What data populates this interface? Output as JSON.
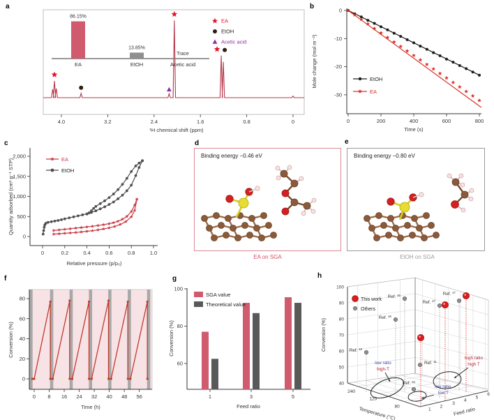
{
  "colors": {
    "crimson_bar": "#d05a6e",
    "nmr_line": "#b5374a",
    "bright_red": "#e8122a",
    "series_red": "#d93025",
    "black": "#1c1c1c",
    "dark_gray": "#4f4f4f",
    "purple": "#8f2f9e",
    "bar_gray": "#8f8f8f",
    "theo_gray": "#595959",
    "cycle_red": "#c0392b",
    "cycle_bg": "#f7e3e6",
    "band_gray": "#a8a8a8",
    "h_red": "#e11b1b",
    "h_gray": "#909090",
    "blue_text": "#3b4ba8",
    "darkred_text": "#b22030",
    "atom_brown": "#8a5a3b",
    "atom_red": "#d42020",
    "atom_yellow": "#e8dc30",
    "atom_white": "#f5e3e3"
  },
  "panels": {
    "a": {
      "label": "a"
    },
    "b": {
      "label": "b"
    },
    "c": {
      "label": "c"
    },
    "d": {
      "label": "d",
      "binding_energy": "Binding energy −0.46 eV",
      "caption": "EA on SGA"
    },
    "e": {
      "label": "e",
      "binding_energy": "Binding energy −0.80 eV",
      "caption": "EtOH on SGA"
    },
    "f": {
      "label": "f"
    },
    "g": {
      "label": "g"
    },
    "h": {
      "label": "h"
    }
  },
  "chart_data": [
    {
      "panel": "a",
      "type": "line",
      "xlabel": "¹H chemical shift (ppm)",
      "xticks": [
        "4.0",
        "3.2",
        "2.4",
        "1.6",
        "0.8",
        "0"
      ],
      "xtick_values": [
        4.0,
        3.2,
        2.4,
        1.6,
        0.8,
        0
      ],
      "x_reversed": true,
      "legend": [
        {
          "label": "EA",
          "marker": "star"
        },
        {
          "label": "EtOH",
          "marker": "circle"
        },
        {
          "label": "Acetic acid",
          "marker": "triangle"
        }
      ],
      "peaks": [
        {
          "ppm": 4.12,
          "rel_height": 0.21,
          "markers": [
            "star"
          ],
          "assign": "EA"
        },
        {
          "ppm": 3.66,
          "rel_height": 0.055,
          "markers": [
            "circle"
          ],
          "assign": "EtOH"
        },
        {
          "ppm": 2.14,
          "rel_height": 0.05,
          "markers": [
            "triangle"
          ],
          "assign": "Acetic acid"
        },
        {
          "ppm": 2.05,
          "rel_height": 0.97,
          "markers": [
            "star"
          ],
          "assign": "EA"
        },
        {
          "ppm": 1.24,
          "rel_height": 0.53,
          "markers": [
            "star",
            "circle"
          ],
          "assign": "EA+EtOH"
        },
        {
          "ppm": 0.0,
          "rel_height": 0.02,
          "markers": [],
          "assign": ""
        }
      ],
      "inset": {
        "type": "bar",
        "categories": [
          "EA",
          "EtOH",
          "Acetic acid"
        ],
        "values": [
          86.15,
          13.85,
          0
        ],
        "value_labels": [
          "86.15%",
          "13.85%",
          "Trace"
        ]
      }
    },
    {
      "panel": "b",
      "type": "scatter",
      "xlabel": "Time (s)",
      "ylabel": "Mole change (mol m⁻²)",
      "xticks": [
        0,
        200,
        400,
        600,
        800
      ],
      "yticks": [
        0,
        -10,
        -20,
        -30
      ],
      "xlim": [
        0,
        820
      ],
      "ylim": [
        -37,
        1
      ],
      "series": [
        {
          "name": "EtOH",
          "marker": "circle",
          "points": [
            [
              0,
              0
            ],
            [
              40,
              -1.2
            ],
            [
              80,
              -2.3
            ],
            [
              120,
              -3.5
            ],
            [
              160,
              -4.6
            ],
            [
              200,
              -5.8
            ],
            [
              240,
              -6.9
            ],
            [
              280,
              -8.1
            ],
            [
              320,
              -9.2
            ],
            [
              360,
              -10.4
            ],
            [
              400,
              -11.5
            ],
            [
              440,
              -12.7
            ],
            [
              480,
              -13.8
            ],
            [
              520,
              -15.0
            ],
            [
              560,
              -16.1
            ],
            [
              600,
              -17.3
            ],
            [
              640,
              -18.4
            ],
            [
              680,
              -19.6
            ],
            [
              720,
              -20.7
            ],
            [
              760,
              -21.9
            ],
            [
              800,
              -23.0
            ]
          ],
          "fit_line": [
            [
              0,
              0
            ],
            [
              800,
              -23
            ]
          ]
        },
        {
          "name": "EA",
          "marker": "star",
          "points": [
            [
              0,
              0
            ],
            [
              40,
              -1.6
            ],
            [
              80,
              -3.2
            ],
            [
              120,
              -4.8
            ],
            [
              160,
              -6.4
            ],
            [
              200,
              -8.0
            ],
            [
              240,
              -9.6
            ],
            [
              280,
              -11.2
            ],
            [
              320,
              -12.8
            ],
            [
              360,
              -14.4
            ],
            [
              400,
              -16.0
            ],
            [
              440,
              -17.6
            ],
            [
              480,
              -19.2
            ],
            [
              520,
              -20.8
            ],
            [
              560,
              -22.4
            ],
            [
              600,
              -24.0
            ],
            [
              640,
              -25.6
            ],
            [
              680,
              -27.2
            ],
            [
              720,
              -28.8
            ],
            [
              760,
              -30.4
            ],
            [
              800,
              -32.0
            ]
          ],
          "fit_line": [
            [
              0,
              0
            ],
            [
              812,
              -34.5
            ]
          ]
        }
      ]
    },
    {
      "panel": "c",
      "type": "line",
      "xlabel": "Relative pressure (p/p₀)",
      "ylabel": "Quantity adsorbed (cm³ g⁻¹ STP)",
      "xticks": [
        "0",
        "0.2",
        "0.4",
        "0.6",
        "0.8",
        "1.0"
      ],
      "xtick_values": [
        0,
        0.2,
        0.4,
        0.6,
        0.8,
        1.0
      ],
      "yticks": [
        "0",
        "500",
        "1,000",
        "1,500",
        "2,000"
      ],
      "ytick_values": [
        0,
        500,
        1000,
        1500,
        2000
      ],
      "series": [
        {
          "name": "EA",
          "marker": "star",
          "adsorption": [
            [
              0.1,
              60
            ],
            [
              0.15,
              70
            ],
            [
              0.2,
              80
            ],
            [
              0.25,
              90
            ],
            [
              0.3,
              100
            ],
            [
              0.35,
              115
            ],
            [
              0.4,
              130
            ],
            [
              0.45,
              145
            ],
            [
              0.5,
              165
            ],
            [
              0.55,
              190
            ],
            [
              0.6,
              215
            ],
            [
              0.65,
              250
            ],
            [
              0.7,
              300
            ],
            [
              0.75,
              370
            ],
            [
              0.8,
              490
            ],
            [
              0.83,
              650
            ],
            [
              0.85,
              930
            ]
          ],
          "desorption": [
            [
              0.85,
              930
            ],
            [
              0.83,
              780
            ],
            [
              0.8,
              620
            ],
            [
              0.76,
              500
            ],
            [
              0.72,
              430
            ],
            [
              0.68,
              380
            ],
            [
              0.64,
              345
            ],
            [
              0.6,
              320
            ],
            [
              0.55,
              295
            ],
            [
              0.5,
              275
            ],
            [
              0.45,
              255
            ],
            [
              0.4,
              240
            ],
            [
              0.35,
              225
            ],
            [
              0.3,
              210
            ],
            [
              0.25,
              195
            ],
            [
              0.2,
              180
            ],
            [
              0.15,
              165
            ],
            [
              0.1,
              150
            ]
          ]
        },
        {
          "name": "EtOH",
          "marker": "circle",
          "adsorption": [
            [
              0.005,
              60
            ],
            [
              0.01,
              150
            ],
            [
              0.015,
              230
            ],
            [
              0.02,
              290
            ],
            [
              0.03,
              330
            ],
            [
              0.05,
              355
            ],
            [
              0.08,
              370
            ],
            [
              0.11,
              385
            ],
            [
              0.14,
              400
            ],
            [
              0.17,
              420
            ],
            [
              0.2,
              440
            ],
            [
              0.24,
              465
            ],
            [
              0.28,
              490
            ],
            [
              0.32,
              515
            ],
            [
              0.36,
              540
            ],
            [
              0.4,
              565
            ],
            [
              0.44,
              600
            ],
            [
              0.48,
              640
            ],
            [
              0.52,
              690
            ],
            [
              0.56,
              740
            ],
            [
              0.6,
              800
            ],
            [
              0.64,
              860
            ],
            [
              0.68,
              940
            ],
            [
              0.72,
              1030
            ],
            [
              0.76,
              1140
            ],
            [
              0.8,
              1280
            ],
            [
              0.84,
              1520
            ],
            [
              0.87,
              1720
            ],
            [
              0.9,
              1890
            ]
          ],
          "desorption": [
            [
              0.9,
              1890
            ],
            [
              0.87,
              1830
            ],
            [
              0.84,
              1760
            ],
            [
              0.8,
              1620
            ],
            [
              0.76,
              1450
            ],
            [
              0.72,
              1300
            ],
            [
              0.68,
              1170
            ],
            [
              0.64,
              1060
            ],
            [
              0.6,
              970
            ],
            [
              0.56,
              890
            ],
            [
              0.52,
              820
            ],
            [
              0.48,
              750
            ],
            [
              0.46,
              700
            ],
            [
              0.44,
              640
            ],
            [
              0.42,
              590
            ],
            [
              0.4,
              560
            ]
          ]
        }
      ]
    },
    {
      "panel": "f",
      "type": "line",
      "xlabel": "Time (h)",
      "ylabel": "Conversion (%)",
      "xticks": [
        0,
        8,
        16,
        24,
        32,
        40,
        48,
        56
      ],
      "yticks": [
        0,
        20,
        40,
        60,
        80
      ],
      "points": [
        [
          -1.0,
          0
        ],
        [
          0,
          0
        ],
        [
          8.6,
          77
        ],
        [
          8.6,
          0
        ],
        [
          9.9,
          0
        ],
        [
          18.9,
          78
        ],
        [
          18.9,
          0
        ],
        [
          20.3,
          0
        ],
        [
          29.2,
          77
        ],
        [
          29.2,
          0
        ],
        [
          30.6,
          0
        ],
        [
          39.6,
          78
        ],
        [
          39.6,
          0
        ],
        [
          41.0,
          0
        ],
        [
          49.9,
          77
        ],
        [
          49.9,
          0
        ],
        [
          51.3,
          0
        ],
        [
          60.3,
          77
        ],
        [
          60.3,
          0
        ]
      ],
      "regeneration_band_centers_h": [
        -1.7,
        9.3,
        19.7,
        30.0,
        40.3,
        50.7,
        61.0
      ]
    },
    {
      "panel": "g",
      "type": "bar",
      "categories": [
        "1",
        "3",
        "5"
      ],
      "xlabel": "Feed ratio",
      "ylabel": "Conversion (%)",
      "ylim": [
        46,
        100
      ],
      "yticks": [
        60,
        80,
        100
      ],
      "series": [
        {
          "name": "SGA value",
          "values": [
            77,
            92.5,
            95.5
          ]
        },
        {
          "name": "Theoretical value",
          "values": [
            62.5,
            87,
            92.5
          ]
        }
      ]
    },
    {
      "panel": "h",
      "type": "scatter3d",
      "zlabel": "Conversion (%)",
      "xlabel3d": "Temperature (°C)",
      "ylabel3d": "Feed ratio",
      "zticks": [
        40,
        50,
        60,
        70,
        80,
        90,
        100
      ],
      "temp_ticks": [
        240,
        120,
        80
      ],
      "feed_ticks": [
        1,
        2,
        3,
        4,
        5,
        6
      ],
      "legend": [
        {
          "label": "This work"
        },
        {
          "label": "Others"
        }
      ],
      "points": [
        {
          "id": "tw1",
          "series": "This work",
          "conversion": 71
        },
        {
          "id": "tw2",
          "series": "This work",
          "conversion": 90
        },
        {
          "id": "tw3",
          "series": "This work",
          "conversion": 95
        },
        {
          "id": "r45",
          "series": "Others",
          "label": "Ref.",
          "ref_num": "45",
          "conversion": 93
        },
        {
          "id": "r46",
          "series": "Others",
          "label": "Ref.",
          "ref_num": "46",
          "conversion": 82
        },
        {
          "id": "r48",
          "series": "Others",
          "label": "Ref.",
          "ref_num": "48",
          "conversion": 58
        },
        {
          "id": "r47a",
          "series": "Others",
          "label": "Ref.",
          "ref_num": "47",
          "conversion": 90
        },
        {
          "id": "r47b",
          "series": "Others",
          "label": "Ref.",
          "ref_num": "47",
          "conversion": 92
        },
        {
          "id": "r11",
          "series": "Others",
          "label": "Ref.",
          "ref_num": "11",
          "conversion": 53
        },
        {
          "id": "r34",
          "series": "Others",
          "label": "Ref.",
          "ref_num": "34",
          "conversion": 45
        }
      ],
      "annotations": [
        {
          "id": "a1",
          "lines": [
            "low ratio",
            "high-T"
          ],
          "line_colors": [
            "blue",
            "red"
          ]
        },
        {
          "id": "a2",
          "lines": [
            "low ratio",
            "low T"
          ],
          "line_colors": [
            "blue",
            "blue"
          ]
        },
        {
          "id": "a3",
          "lines": [
            "high ratio",
            "high T"
          ],
          "line_colors": [
            "red",
            "red"
          ]
        }
      ]
    }
  ]
}
